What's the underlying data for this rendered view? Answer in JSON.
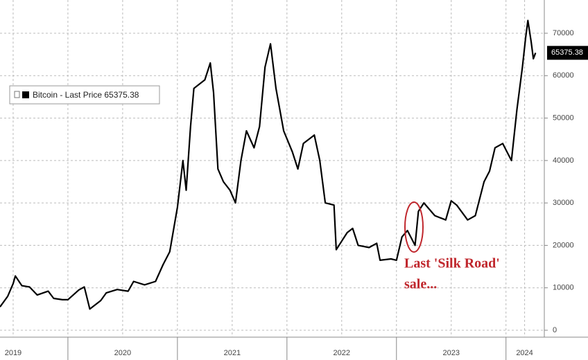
{
  "chart_data": {
    "type": "line",
    "series": [
      {
        "name": "Bitcoin - Last Price 65375.38",
        "color": "#000000",
        "x": [
          2019.38,
          2019.45,
          2019.5,
          2019.52,
          2019.58,
          2019.65,
          2019.72,
          2019.82,
          2019.87,
          2019.95,
          2020.0,
          2020.1,
          2020.15,
          2020.2,
          2020.3,
          2020.35,
          2020.45,
          2020.55,
          2020.6,
          2020.7,
          2020.8,
          2020.87,
          2020.93,
          2021.0,
          2021.05,
          2021.08,
          2021.12,
          2021.15,
          2021.2,
          2021.25,
          2021.3,
          2021.33,
          2021.37,
          2021.42,
          2021.48,
          2021.53,
          2021.58,
          2021.63,
          2021.7,
          2021.75,
          2021.8,
          2021.85,
          2021.9,
          2021.97,
          2022.05,
          2022.1,
          2022.15,
          2022.25,
          2022.3,
          2022.35,
          2022.43,
          2022.45,
          2022.5,
          2022.55,
          2022.6,
          2022.65,
          2022.75,
          2022.82,
          2022.85,
          2022.95,
          2023.0,
          2023.05,
          2023.1,
          2023.17,
          2023.2,
          2023.25,
          2023.35,
          2023.45,
          2023.5,
          2023.55,
          2023.65,
          2023.72,
          2023.8,
          2023.85,
          2023.9,
          2023.97,
          2024.0,
          2024.05,
          2024.1,
          2024.15,
          2024.18,
          2024.2,
          2024.23,
          2024.25,
          2024.27
        ],
        "values": [
          5500,
          8000,
          11000,
          12800,
          10500,
          10200,
          8300,
          9200,
          7500,
          7200,
          7200,
          9500,
          10200,
          5000,
          7000,
          8800,
          9600,
          9200,
          11500,
          10700,
          11500,
          15500,
          18500,
          29000,
          40000,
          33000,
          48000,
          57000,
          58000,
          59000,
          63000,
          56000,
          38000,
          35000,
          33000,
          30000,
          40000,
          47000,
          43000,
          48000,
          62000,
          67500,
          57000,
          47000,
          42000,
          38000,
          44000,
          46000,
          40000,
          30000,
          29500,
          19000,
          21000,
          23000,
          24000,
          20000,
          19500,
          20500,
          16500,
          16800,
          16500,
          22000,
          23500,
          20000,
          28000,
          30000,
          27000,
          26000,
          30500,
          29500,
          26000,
          27000,
          35000,
          37500,
          43000,
          44000,
          42500,
          40000,
          52000,
          62000,
          69000,
          73000,
          68000,
          64000,
          65375.38
        ]
      }
    ],
    "last_price": 65375.38,
    "xlim": [
      2019.38,
      2024.35
    ],
    "xticks": [
      {
        "value": 2019.5,
        "label": "2019"
      },
      {
        "value": 2020.5,
        "label": "2020"
      },
      {
        "value": 2021.5,
        "label": "2021"
      },
      {
        "value": 2022.5,
        "label": "2022"
      },
      {
        "value": 2023.5,
        "label": "2023"
      },
      {
        "value": 2024.17,
        "label": "2024"
      }
    ],
    "year_boundaries": [
      2020,
      2021,
      2022,
      2023,
      2024
    ],
    "ylim": [
      -1630,
      77830
    ],
    "yticks": [
      0,
      10000,
      20000,
      30000,
      40000,
      50000,
      60000,
      70000
    ],
    "grid": true,
    "annotation": [
      "Last 'Silk Road'",
      "sale..."
    ]
  }
}
